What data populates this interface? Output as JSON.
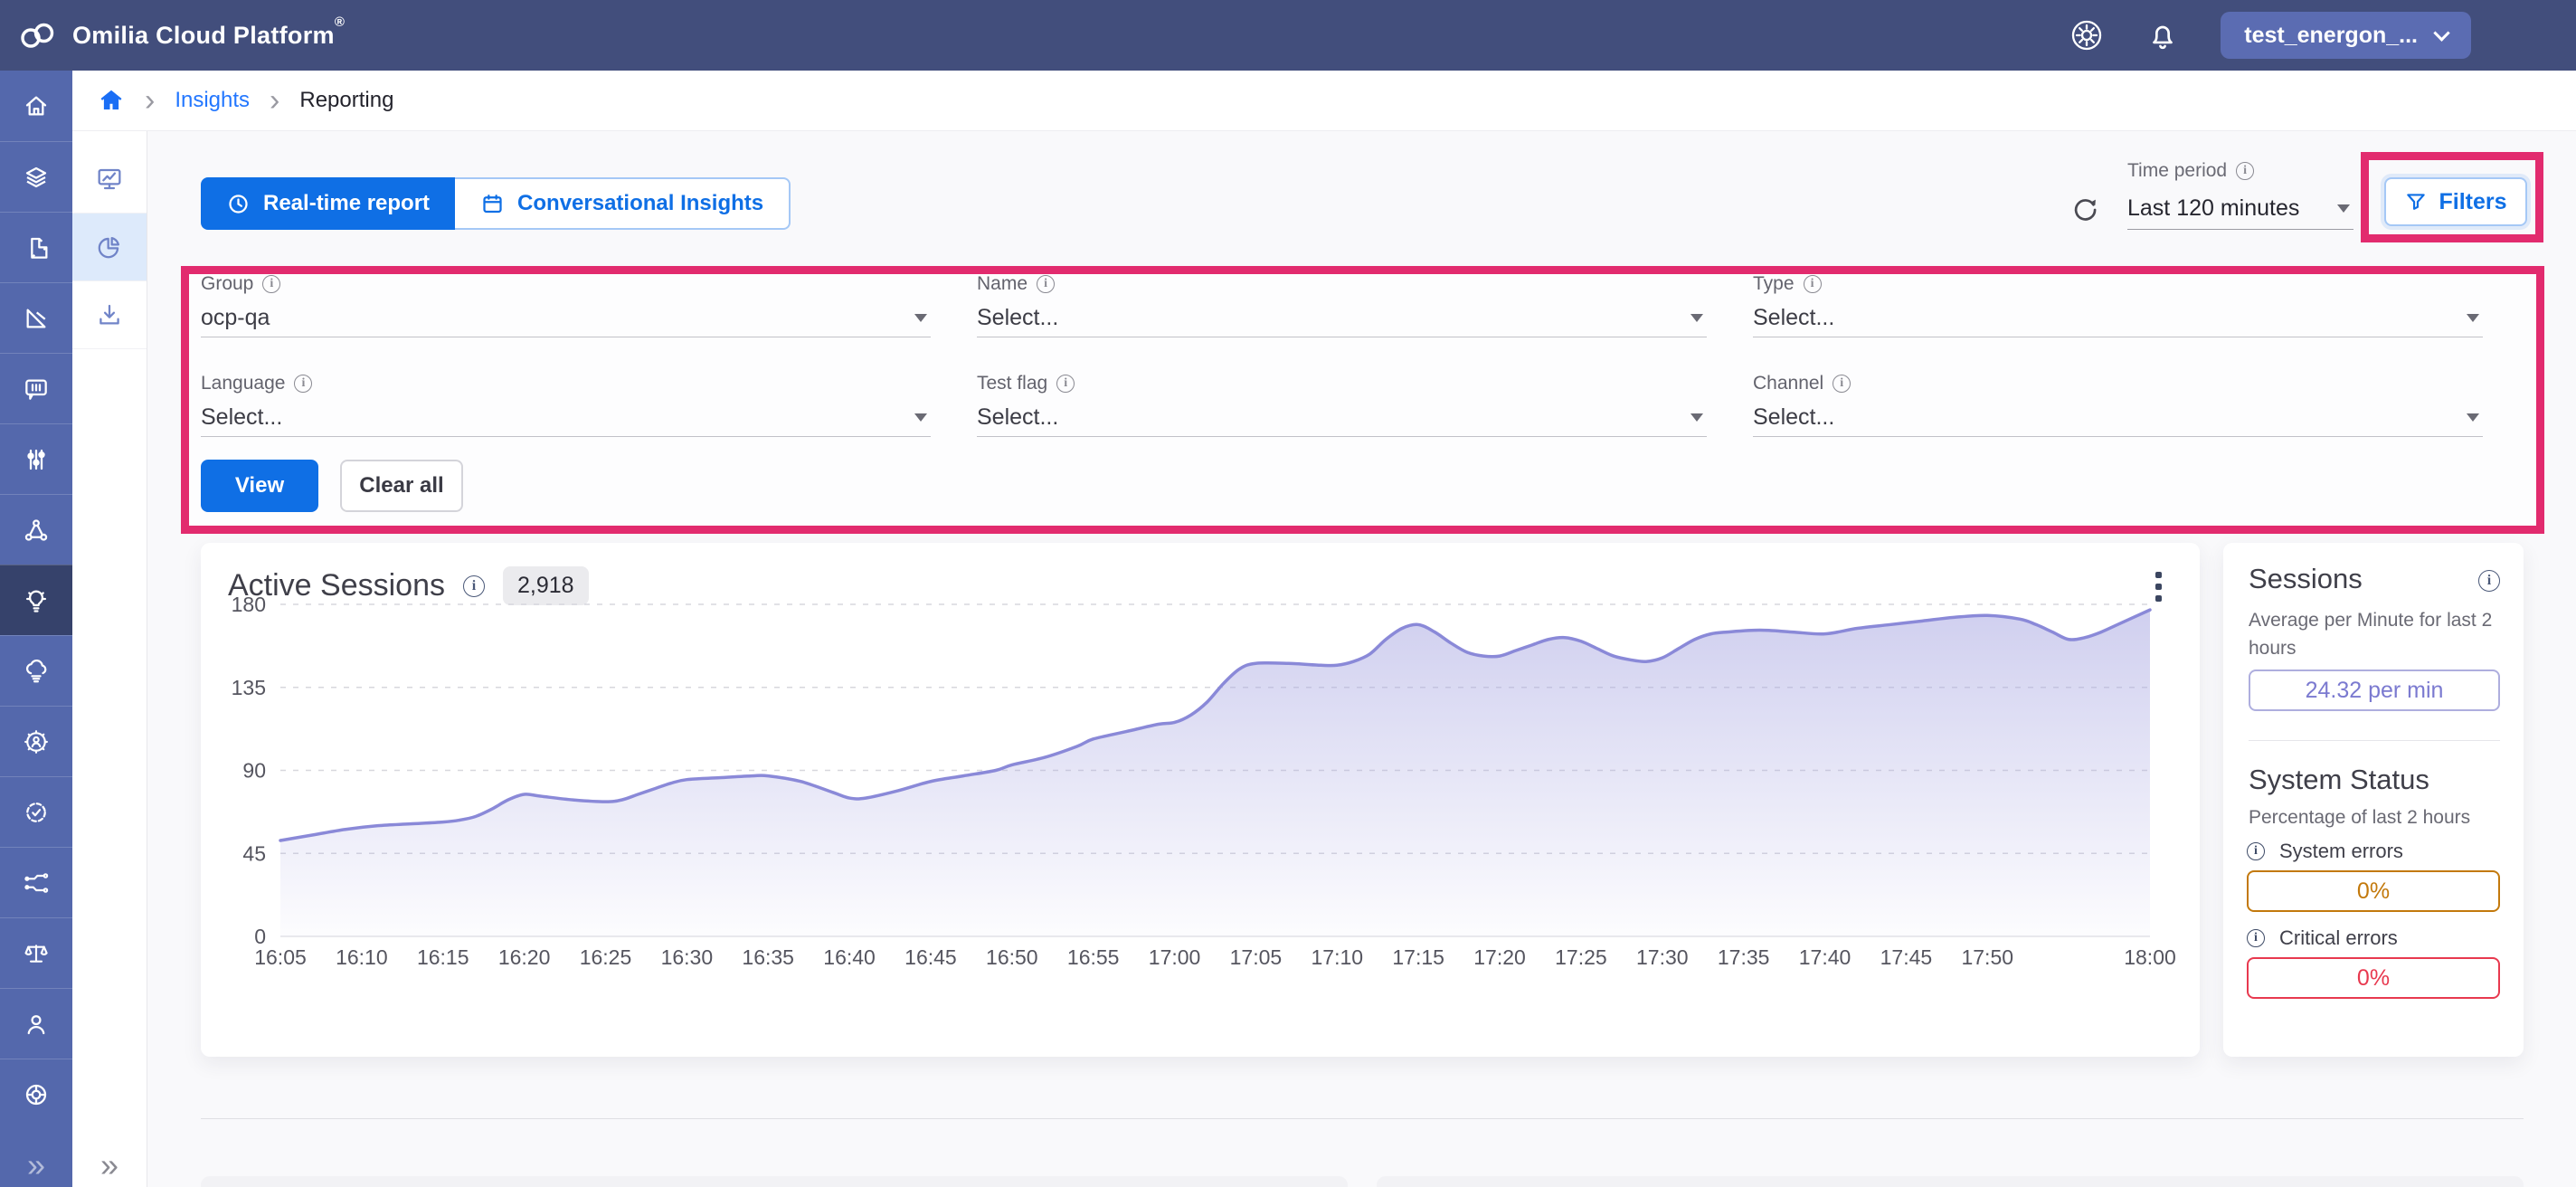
{
  "topbar": {
    "brand": "Omilia Cloud Platform",
    "registered_mark": "®",
    "tenant": "test_energon_...",
    "icons": [
      "cloud-logo-icon",
      "settings-gear-icon",
      "notifications-bell-icon",
      "chevron-down-icon"
    ]
  },
  "breadcrumb": {
    "home_icon": "home-icon",
    "items": [
      {
        "label": "Insights",
        "type": "link"
      },
      {
        "label": "Reporting",
        "type": "current"
      }
    ]
  },
  "sidebar": {
    "primary_icons": [
      "home-icon",
      "layers-icon",
      "pipeline-icon",
      "design-tools-icon",
      "conversation-icon",
      "sliders-icon",
      "network-icon",
      "insights-bulb-icon",
      "cloud-services-icon",
      "user-gear-icon",
      "badge-check-icon",
      "circuit-icon",
      "scales-icon",
      "profile-icon",
      "support-ring-icon"
    ],
    "primary_active_index": 7,
    "secondary_icons": [
      "dashboard-monitor-icon",
      "reports-pie-icon",
      "download-icon"
    ],
    "secondary_active_index": 1,
    "collapse_glyph": "»"
  },
  "tabs": [
    {
      "label": "Real-time report",
      "icon": "clock-icon",
      "active": true
    },
    {
      "label": "Conversational Insights",
      "icon": "calendar-icon",
      "active": false
    }
  ],
  "toolbar": {
    "refresh_icon": "refresh-icon",
    "time_period": {
      "label": "Time period",
      "value": "Last 120 minutes"
    },
    "filters_button": {
      "label": "Filters",
      "icon": "funnel-icon"
    }
  },
  "filters": {
    "fields": [
      {
        "label": "Group",
        "value": "ocp-qa"
      },
      {
        "label": "Name",
        "value": "Select..."
      },
      {
        "label": "Type",
        "value": "Select..."
      },
      {
        "label": "Language",
        "value": "Select..."
      },
      {
        "label": "Test flag",
        "value": "Select..."
      },
      {
        "label": "Channel",
        "value": "Select..."
      }
    ],
    "view_label": "View",
    "clear_all_label": "Clear all"
  },
  "chart_card": {
    "title": "Active Sessions",
    "badge_total": "2,918",
    "menu_icon": "kebab-menu-icon"
  },
  "chart_data": {
    "type": "area",
    "title": "Active Sessions",
    "x_axis": "time of day (5-minute ticks, 16:05 to 18:00)",
    "y_axis": "active sessions",
    "ylim": [
      0,
      180
    ],
    "x_minutes_range": [
      0,
      115
    ],
    "grid": "dashed horizontal gridlines",
    "legend": "none",
    "line_color": "#8a89d8",
    "fill": "vertical gradient #a9a8e2 to transparent",
    "y_ticks": [
      0,
      45,
      90,
      135,
      180
    ],
    "x_ticks": [
      {
        "t": 0,
        "label": "16:05"
      },
      {
        "t": 5,
        "label": "16:10"
      },
      {
        "t": 10,
        "label": "16:15"
      },
      {
        "t": 15,
        "label": "16:20"
      },
      {
        "t": 20,
        "label": "16:25"
      },
      {
        "t": 25,
        "label": "16:30"
      },
      {
        "t": 30,
        "label": "16:35"
      },
      {
        "t": 35,
        "label": "16:40"
      },
      {
        "t": 40,
        "label": "16:45"
      },
      {
        "t": 45,
        "label": "16:50"
      },
      {
        "t": 50,
        "label": "16:55"
      },
      {
        "t": 55,
        "label": "17:00"
      },
      {
        "t": 60,
        "label": "17:05"
      },
      {
        "t": 65,
        "label": "17:10"
      },
      {
        "t": 70,
        "label": "17:15"
      },
      {
        "t": 75,
        "label": "17:20"
      },
      {
        "t": 80,
        "label": "17:25"
      },
      {
        "t": 85,
        "label": "17:30"
      },
      {
        "t": 90,
        "label": "17:35"
      },
      {
        "t": 95,
        "label": "17:40"
      },
      {
        "t": 100,
        "label": "17:45"
      },
      {
        "t": 105,
        "label": "17:50"
      },
      {
        "t": 115,
        "label": "18:00"
      }
    ],
    "series": [
      {
        "name": "Active Sessions",
        "points": [
          [
            0,
            52
          ],
          [
            2,
            55
          ],
          [
            4,
            58
          ],
          [
            6,
            60
          ],
          [
            8,
            61
          ],
          [
            10,
            62
          ],
          [
            11,
            63
          ],
          [
            12,
            65
          ],
          [
            13,
            69
          ],
          [
            14,
            74
          ],
          [
            15,
            77
          ],
          [
            16,
            76
          ],
          [
            18,
            74
          ],
          [
            20,
            73
          ],
          [
            21,
            74
          ],
          [
            22,
            77
          ],
          [
            23,
            80
          ],
          [
            24,
            83
          ],
          [
            25,
            85
          ],
          [
            27,
            86
          ],
          [
            29,
            87
          ],
          [
            30,
            87
          ],
          [
            32,
            84
          ],
          [
            34,
            78
          ],
          [
            35,
            75
          ],
          [
            36,
            75
          ],
          [
            38,
            79
          ],
          [
            40,
            84
          ],
          [
            42,
            87
          ],
          [
            44,
            90
          ],
          [
            45,
            93
          ],
          [
            47,
            97
          ],
          [
            49,
            103
          ],
          [
            50,
            107
          ],
          [
            52,
            111
          ],
          [
            54,
            115
          ],
          [
            55,
            116
          ],
          [
            56,
            120
          ],
          [
            57,
            127
          ],
          [
            58,
            137
          ],
          [
            59,
            145
          ],
          [
            60,
            148
          ],
          [
            62,
            148
          ],
          [
            64,
            147
          ],
          [
            65,
            147
          ],
          [
            66,
            149
          ],
          [
            67,
            153
          ],
          [
            68,
            161
          ],
          [
            69,
            167
          ],
          [
            70,
            169
          ],
          [
            71,
            165
          ],
          [
            72,
            159
          ],
          [
            73,
            154
          ],
          [
            74,
            152
          ],
          [
            75,
            152
          ],
          [
            76,
            155
          ],
          [
            77,
            158
          ],
          [
            78,
            161
          ],
          [
            79,
            162
          ],
          [
            80,
            160
          ],
          [
            81,
            156
          ],
          [
            82,
            152
          ],
          [
            83,
            150
          ],
          [
            84,
            149
          ],
          [
            85,
            151
          ],
          [
            86,
            156
          ],
          [
            87,
            161
          ],
          [
            88,
            164
          ],
          [
            89,
            165
          ],
          [
            91,
            166
          ],
          [
            93,
            165
          ],
          [
            95,
            164
          ],
          [
            97,
            167
          ],
          [
            99,
            169
          ],
          [
            101,
            171
          ],
          [
            103,
            173
          ],
          [
            105,
            174
          ],
          [
            107,
            172
          ],
          [
            108,
            169
          ],
          [
            109,
            165
          ],
          [
            110,
            161
          ],
          [
            111,
            162
          ],
          [
            112,
            165
          ],
          [
            113,
            169
          ],
          [
            115,
            177
          ]
        ]
      }
    ]
  },
  "sessions_panel": {
    "title": "Sessions",
    "subtitle": "Average per Minute for last 2 hours",
    "average_value": "24.32 per min",
    "status_title": "System Status",
    "status_subtitle": "Percentage of last 2 hours",
    "metrics": [
      {
        "label": "System errors",
        "value": "0%",
        "color": "#c3790c"
      },
      {
        "label": "Critical errors",
        "value": "0%",
        "color": "#e8394f"
      }
    ]
  },
  "annotations": {
    "color": "#e22b6e",
    "boxes": [
      "filters-button-highlight",
      "filters-panel-highlight"
    ]
  },
  "colors": {
    "topbar": "#424e7c",
    "rail": "#5468ac",
    "rail_active": "#36426b",
    "secondary_active_bg": "#ddeafb",
    "accent_blue": "#0f6fe5",
    "link_blue": "#2377ff",
    "annotation_pink": "#e22b6e",
    "chart_line": "#8a89d8",
    "value_purple": "#7b7ad0",
    "warn_orange": "#c3790c",
    "error_red": "#e8394f"
  }
}
